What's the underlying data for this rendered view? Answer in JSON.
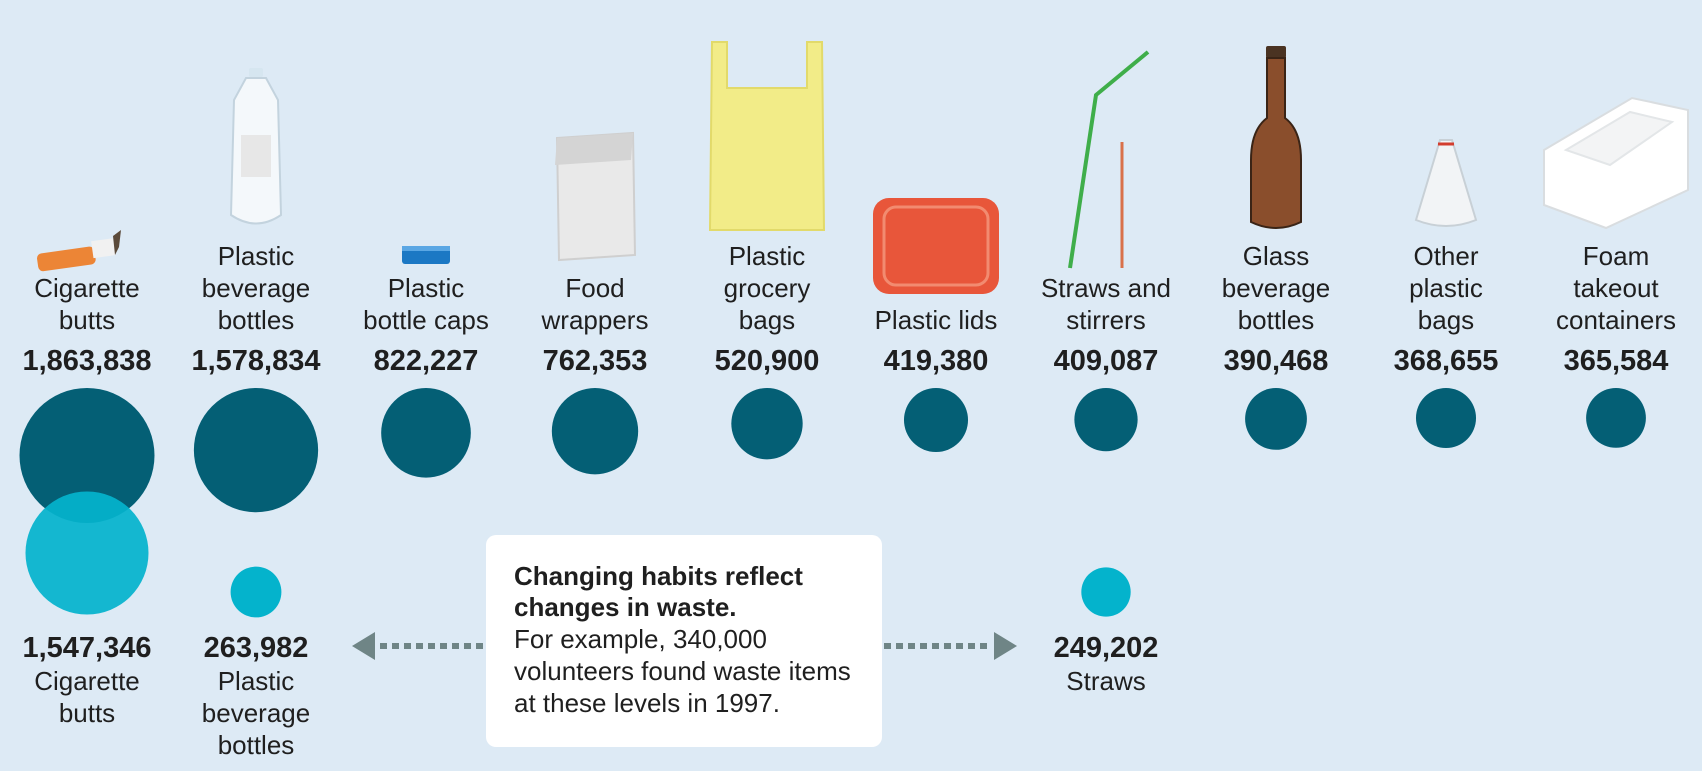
{
  "callout": {
    "title": "Changing habits reflect changes in waste.",
    "body": "For example, 340,000 volunteers found waste items at these levels in 1997."
  },
  "colors": {
    "background": "#ddeaf5",
    "current_bubble": "#045f75",
    "historic_bubble": "#04b3cc",
    "arrow": "#6f8586"
  },
  "chart_data": {
    "type": "bubble",
    "items": [
      {
        "label": [
          "Cigarette",
          "butts"
        ],
        "value": 1863838,
        "value_text": "1,863,838",
        "icon": "cigarette-butt-icon"
      },
      {
        "label": [
          "Plastic",
          "beverage",
          "bottles"
        ],
        "value": 1578834,
        "value_text": "1,578,834",
        "icon": "plastic-bottle-icon"
      },
      {
        "label": [
          "Plastic",
          "bottle caps"
        ],
        "value": 822227,
        "value_text": "822,227",
        "icon": "bottle-cap-icon"
      },
      {
        "label": [
          "Food",
          "wrappers"
        ],
        "value": 762353,
        "value_text": "762,353",
        "icon": "food-wrapper-icon"
      },
      {
        "label": [
          "Plastic",
          "grocery",
          "bags"
        ],
        "value": 520900,
        "value_text": "520,900",
        "icon": "grocery-bag-icon"
      },
      {
        "label": [
          "Plastic lids"
        ],
        "value": 419380,
        "value_text": "419,380",
        "icon": "plastic-lid-icon"
      },
      {
        "label": [
          "Straws and",
          "stirrers"
        ],
        "value": 409087,
        "value_text": "409,087",
        "icon": "straws-icon"
      },
      {
        "label": [
          "Glass",
          "beverage",
          "bottles"
        ],
        "value": 390468,
        "value_text": "390,468",
        "icon": "glass-bottle-icon"
      },
      {
        "label": [
          "Other",
          "plastic",
          "bags"
        ],
        "value": 368655,
        "value_text": "368,655",
        "icon": "plastic-bag-icon"
      },
      {
        "label": [
          "Foam",
          "takeout",
          "containers"
        ],
        "value": 365584,
        "value_text": "365,584",
        "icon": "foam-container-icon"
      }
    ],
    "historic": [
      {
        "column": 0,
        "value": 1547346,
        "value_text": "1,547,346",
        "label": [
          "Cigarette",
          "butts"
        ]
      },
      {
        "column": 1,
        "value": 263982,
        "value_text": "263,982",
        "label": [
          "Plastic",
          "beverage",
          "bottles"
        ]
      },
      {
        "column": 6,
        "value": 249202,
        "value_text": "249,202",
        "label": [
          "Straws"
        ]
      }
    ]
  }
}
